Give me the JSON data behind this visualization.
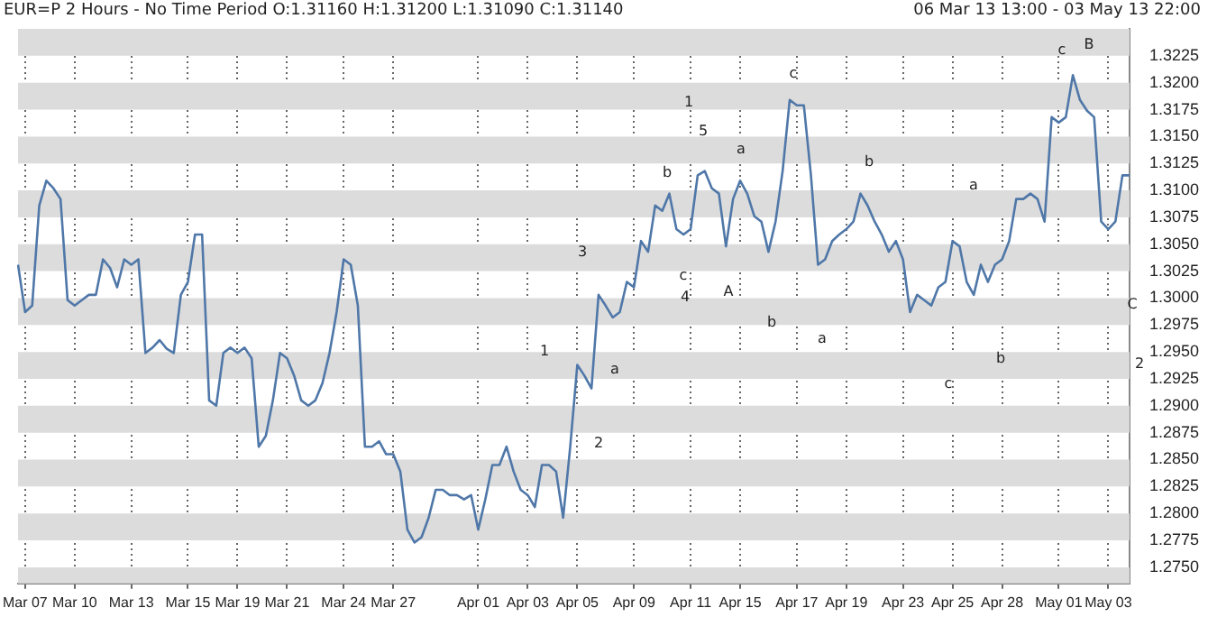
{
  "chart_data": {
    "type": "line",
    "title": "EUR=P 2 Hours -  No Time Period O:1.31160 H:1.31200 L:1.31090 C:1.31140",
    "categories": [
      null,
      "Mar 07",
      null,
      null,
      null,
      null,
      null,
      null,
      "Mar 10",
      null,
      null,
      null,
      null,
      null,
      null,
      null,
      "Mar 13",
      null,
      null,
      null,
      null,
      null,
      null,
      null,
      "Mar 15",
      null,
      null,
      null,
      null,
      null,
      null,
      "Mar 19",
      null,
      null,
      null,
      null,
      null,
      null,
      "Mar 21",
      null,
      null,
      null,
      null,
      null,
      null,
      null,
      "Mar 24",
      null,
      null,
      null,
      null,
      null,
      null,
      "Mar 27",
      null,
      null,
      null,
      null,
      null,
      null,
      null,
      null,
      null,
      null,
      null,
      "Apr 01",
      null,
      null,
      null,
      null,
      null,
      null,
      "Apr 03",
      null,
      null,
      null,
      null,
      null,
      null,
      "Apr 05",
      null,
      null,
      null,
      null,
      null,
      null,
      null,
      "Apr 09",
      null,
      null,
      null,
      null,
      null,
      null,
      null,
      "Apr 11",
      null,
      null,
      null,
      null,
      null,
      null,
      "Apr 15",
      null,
      null,
      null,
      null,
      null,
      null,
      null,
      "Apr 17",
      null,
      null,
      null,
      null,
      null,
      null,
      "Apr 19",
      null,
      null,
      null,
      null,
      null,
      null,
      null,
      "Apr 23",
      null,
      null,
      null,
      null,
      null,
      null,
      "Apr 25",
      null,
      null,
      null,
      null,
      null,
      null,
      "Apr 28",
      null,
      null,
      null,
      null,
      null,
      null,
      null,
      "May 01",
      null,
      null,
      null,
      null,
      null,
      null,
      "May 03",
      null,
      null,
      null
    ],
    "series": [
      {
        "color": "#4f77a8",
        "values": [
          1.3031,
          1.2987,
          1.2993,
          1.3086,
          1.3109,
          1.3102,
          1.3092,
          1.2998,
          1.2993,
          1.2998,
          1.3003,
          1.3003,
          1.3036,
          1.3028,
          1.301,
          1.3036,
          1.3031,
          1.3036,
          1.2949,
          1.2954,
          1.2961,
          1.2953,
          1.2949,
          1.3003,
          1.3015,
          1.3059,
          1.3059,
          1.2905,
          1.29,
          1.2949,
          1.2954,
          1.2949,
          1.2954,
          1.2944,
          1.2862,
          1.2872,
          1.2905,
          1.2949,
          1.2944,
          1.2928,
          1.2905,
          1.29,
          1.2905,
          1.2921,
          1.2949,
          1.2987,
          1.3036,
          1.3031,
          1.2993,
          1.2862,
          1.2862,
          1.2867,
          1.2855,
          1.2855,
          1.2839,
          1.2785,
          1.2773,
          1.2778,
          1.2796,
          1.2822,
          1.2822,
          1.2817,
          1.2817,
          1.2813,
          1.2817,
          1.2785,
          1.2813,
          1.2845,
          1.2845,
          1.2862,
          1.2839,
          1.2822,
          1.2817,
          1.2806,
          1.2845,
          1.2845,
          1.2839,
          1.2796,
          1.2862,
          1.2938,
          1.2928,
          1.2916,
          1.3003,
          1.2993,
          1.2982,
          1.2987,
          1.3015,
          1.301,
          1.3053,
          1.3043,
          1.3086,
          1.3081,
          1.3097,
          1.3064,
          1.3059,
          1.3064,
          1.3114,
          1.3118,
          1.3102,
          1.3097,
          1.3048,
          1.3092,
          1.3109,
          1.3097,
          1.3076,
          1.3071,
          1.3043,
          1.3071,
          1.3118,
          1.3184,
          1.3179,
          1.3179,
          1.3114,
          1.3031,
          1.3036,
          1.3053,
          1.3059,
          1.3064,
          1.3071,
          1.3097,
          1.3086,
          1.3071,
          1.3059,
          1.3043,
          1.3053,
          1.3036,
          1.2987,
          1.3003,
          1.2998,
          1.2993,
          1.301,
          1.3015,
          1.3053,
          1.3048,
          1.3015,
          1.3003,
          1.3031,
          1.3015,
          1.3031,
          1.3036,
          1.3053,
          1.3092,
          1.3092,
          1.3097,
          1.3092,
          1.3071,
          1.3168,
          1.3163,
          1.3168,
          1.3207,
          1.3184,
          1.3174,
          1.3168,
          1.3071,
          1.3064,
          1.3071,
          1.3114,
          1.3114
        ]
      }
    ],
    "ylim": [
      1.2735,
      1.325
    ],
    "yticks": [
      {
        "value": 1.275,
        "label": "1.2750"
      },
      {
        "value": 1.2775,
        "label": "1.2775"
      },
      {
        "value": 1.28,
        "label": "1.2800"
      },
      {
        "value": 1.2825,
        "label": "1.2825"
      },
      {
        "value": 1.285,
        "label": "1.2850"
      },
      {
        "value": 1.2875,
        "label": "1.2875"
      },
      {
        "value": 1.29,
        "label": "1.2900"
      },
      {
        "value": 1.2925,
        "label": "1.2925"
      },
      {
        "value": 1.295,
        "label": "1.2950"
      },
      {
        "value": 1.2975,
        "label": "1.2975"
      },
      {
        "value": 1.3,
        "label": "1.3000"
      },
      {
        "value": 1.3025,
        "label": "1.3025"
      },
      {
        "value": 1.305,
        "label": "1.3050"
      },
      {
        "value": 1.3075,
        "label": "1.3075"
      },
      {
        "value": 1.31,
        "label": "1.3100"
      },
      {
        "value": 1.3125,
        "label": "1.3125"
      },
      {
        "value": 1.315,
        "label": "1.3150"
      },
      {
        "value": 1.3175,
        "label": "1.3175"
      },
      {
        "value": 1.32,
        "label": "1.3200"
      },
      {
        "value": 1.3225,
        "label": "1.3225"
      }
    ],
    "grid": true,
    "annotations": [
      "06 Mar 13 13:00  -  03 May 13 22:00",
      "1",
      "2",
      "3",
      "a",
      "b",
      "c",
      "4",
      "1",
      "5",
      "a",
      "A",
      "b",
      "c",
      "a",
      "b",
      "c",
      "a",
      "b",
      "c",
      "B",
      "C",
      "2"
    ]
  }
}
